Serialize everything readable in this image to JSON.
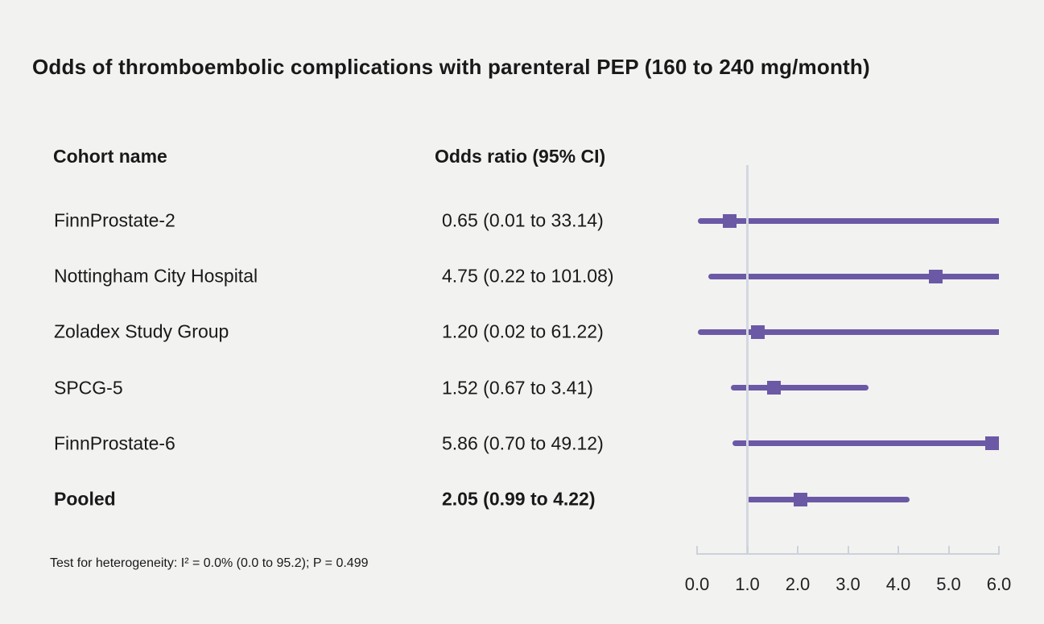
{
  "chart_data": {
    "type": "scatter",
    "variant": "forest-plot",
    "title": "Odds of thromboembolic complications with parenteral PEP (160 to 240 mg/month)",
    "columns": {
      "cohort": "Cohort name",
      "odds_ratio": "Odds ratio (95% CI)"
    },
    "rows": [
      {
        "cohort": "FinnProstate-2",
        "or": 0.65,
        "ci_low": 0.01,
        "ci_high": 33.14,
        "or_label": "0.65 (0.01 to 33.14)",
        "bold": false
      },
      {
        "cohort": "Nottingham City Hospital",
        "or": 4.75,
        "ci_low": 0.22,
        "ci_high": 101.08,
        "or_label": "4.75 (0.22 to 101.08)",
        "bold": false
      },
      {
        "cohort": "Zoladex Study Group",
        "or": 1.2,
        "ci_low": 0.02,
        "ci_high": 61.22,
        "or_label": "1.20 (0.02 to 61.22)",
        "bold": false
      },
      {
        "cohort": "SPCG-5",
        "or": 1.52,
        "ci_low": 0.67,
        "ci_high": 3.41,
        "or_label": "1.52 (0.67 to 3.41)",
        "bold": false
      },
      {
        "cohort": "FinnProstate-6",
        "or": 5.86,
        "ci_low": 0.7,
        "ci_high": 49.12,
        "or_label": "5.86 (0.70 to 49.12)",
        "bold": false
      },
      {
        "cohort": "Pooled",
        "or": 2.05,
        "ci_low": 0.99,
        "ci_high": 4.22,
        "or_label": "2.05 (0.99 to 4.22)",
        "bold": true
      }
    ],
    "x_axis": {
      "xlim": [
        0.0,
        6.0
      ],
      "tick_values": [
        0,
        1,
        2,
        3,
        4,
        5,
        6
      ],
      "tick_labels": [
        "0.0",
        "1.0",
        "2.0",
        "3.0",
        "4.0",
        "5.0",
        "6.0"
      ],
      "reference_line_x": 1.0
    },
    "footnote": "Test for heterogeneity: I² = 0.0% (0.0 to 95.2); P = 0.499",
    "colors": {
      "marker": "#6b59a6",
      "ci_line": "#6b59a6",
      "axis": "#ccd2da",
      "reference_line": "#d3d7de",
      "background": "#f2f2f1",
      "text": "#191919"
    },
    "grid": false,
    "legend": "none"
  }
}
